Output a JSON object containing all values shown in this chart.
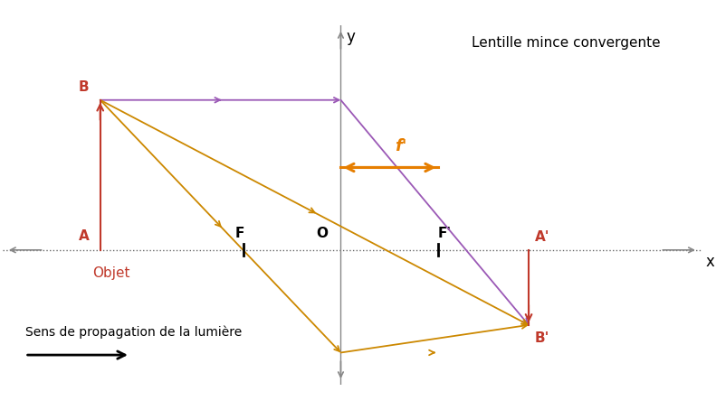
{
  "title": "Lentille mince convergente",
  "xlabel": "x",
  "ylabel": "y",
  "background_color": "#ffffff",
  "lens_x": 0,
  "A_x": -3.2,
  "A_y": 0,
  "B_x": -3.2,
  "B_y": 2.0,
  "Ap_x": 2.5,
  "Ap_y": 0,
  "Bp_x": 2.5,
  "Bp_y": -1.0,
  "F_x": -1.3,
  "F_y": 0,
  "Fp_x": 1.3,
  "Fp_y": 0,
  "O_x": 0,
  "O_y": 0,
  "xlim": [
    -4.5,
    4.8
  ],
  "ylim": [
    -1.8,
    3.0
  ],
  "object_color": "#c0392b",
  "image_color": "#c0392b",
  "ray1_color": "#9b59b6",
  "ray2_color": "#cc8800",
  "ray3_color": "#cc8800",
  "focal_arrow_color": "#e67e00",
  "axis_color": "#888888",
  "optical_axis_color": "#666666",
  "label_fontsize": 11,
  "prop_text": "Sens de propagation de la lumière",
  "prop_text_fontsize": 10
}
